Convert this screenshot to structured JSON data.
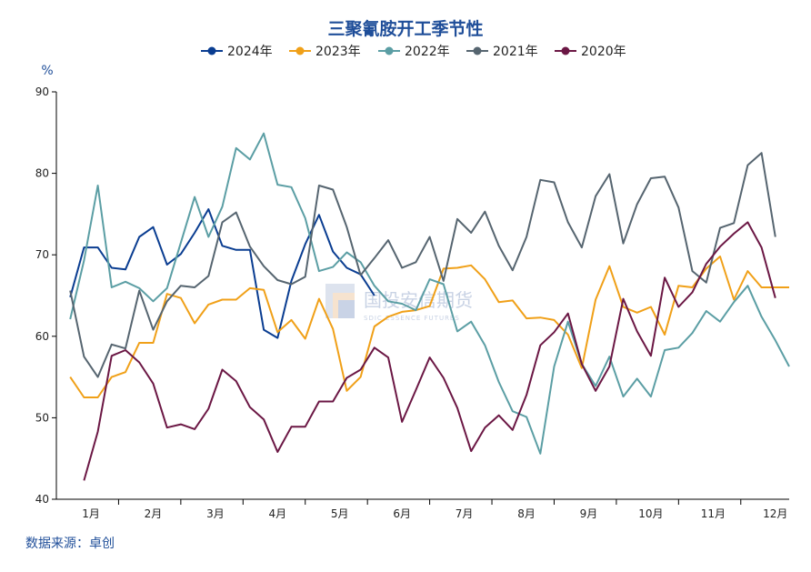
{
  "source_label": "数据来源：卓创",
  "watermark": {
    "main": "国投安信期货",
    "sub": "SDIC ESSENCE FUTURES"
  },
  "colors": {
    "2024年": "#0a3d91",
    "2023年": "#f0a018",
    "2022年": "#5b9ea4",
    "2021年": "#566570",
    "2020年": "#6b1744"
  },
  "chart_data": {
    "type": "line",
    "title": "三聚氰胺开工季节性",
    "ylabel": "%",
    "xlabel": "",
    "ylim": [
      40,
      90
    ],
    "yticks": [
      40,
      50,
      60,
      70,
      80,
      90
    ],
    "xlim": [
      0,
      53
    ],
    "x_tick_labels": [
      "1月",
      "2月",
      "3月",
      "4月",
      "5月",
      "6月",
      "7月",
      "8月",
      "9月",
      "10月",
      "11月",
      "12月"
    ],
    "x_tick_positions": [
      2.5,
      7,
      11.5,
      16,
      20.5,
      25,
      29.5,
      34,
      38.5,
      43,
      47.5,
      52
    ],
    "grid": false,
    "legend_position": "top",
    "series": [
      {
        "name": "2024年",
        "x_start": 1,
        "values": [
          64.8,
          70.9,
          70.9,
          68.4,
          68.2,
          72.2,
          73.4,
          68.8,
          70.1,
          72.7,
          75.6,
          71.1,
          70.6,
          70.6,
          60.8,
          59.8,
          66.8,
          71.3,
          74.9,
          70.4,
          68.4,
          67.6,
          65.0
        ]
      },
      {
        "name": "2023年",
        "x_start": 1,
        "values": [
          55.0,
          52.5,
          52.5,
          55.0,
          55.6,
          59.2,
          59.2,
          65.2,
          64.7,
          61.6,
          63.9,
          64.5,
          64.5,
          65.9,
          65.7,
          60.5,
          62.0,
          59.7,
          64.6,
          60.9,
          53.3,
          55.0,
          61.2,
          62.4,
          63.0,
          63.2,
          63.7,
          68.3,
          68.4,
          68.7,
          67.0,
          64.2,
          64.4,
          62.2,
          62.3,
          62.0,
          60.2,
          56.1,
          64.5,
          68.6,
          63.6,
          62.9,
          63.6,
          60.2,
          66.2,
          66.0,
          68.3,
          69.8,
          64.5,
          68.0,
          66.0,
          66.0,
          66.0
        ]
      },
      {
        "name": "2022年",
        "x_start": 1,
        "values": [
          62.1,
          69.3,
          78.5,
          66.0,
          66.7,
          65.9,
          64.3,
          65.9,
          71.5,
          77.1,
          72.2,
          75.9,
          83.1,
          81.7,
          84.9,
          78.6,
          78.3,
          74.5,
          68.0,
          68.5,
          70.3,
          69.1,
          66.2,
          64.3,
          64.0,
          63.2,
          67.0,
          66.4,
          60.6,
          61.8,
          58.9,
          54.4,
          50.8,
          50.1,
          45.6,
          56.3,
          61.8,
          56.6,
          53.9,
          57.5,
          52.6,
          54.8,
          52.6,
          58.3,
          58.6,
          60.4,
          63.1,
          61.8,
          64.2,
          66.2,
          62.4,
          59.5,
          56.3
        ]
      },
      {
        "name": "2021年",
        "x_start": 1,
        "values": [
          65.6,
          57.5,
          55.0,
          59.0,
          58.5,
          65.6,
          60.8,
          64.3,
          66.2,
          66.0,
          67.4,
          74.0,
          75.2,
          71.0,
          68.6,
          66.9,
          66.4,
          67.3,
          78.5,
          78.0,
          73.4,
          67.5,
          69.6,
          71.8,
          68.4,
          69.1,
          72.2,
          66.8,
          74.4,
          72.7,
          75.3,
          71.1,
          68.1,
          72.2,
          79.2,
          78.9,
          74.0,
          70.9,
          77.2,
          79.9,
          71.4,
          76.2,
          79.4,
          79.6,
          75.8,
          68.0,
          66.6,
          73.3,
          73.9,
          81.0,
          82.5,
          72.2
        ]
      },
      {
        "name": "2020年",
        "x_start": 2,
        "values": [
          42.3,
          48.3,
          57.6,
          58.3,
          56.8,
          54.2,
          48.8,
          49.2,
          48.6,
          51.1,
          55.9,
          54.5,
          51.3,
          49.8,
          45.8,
          48.9,
          48.9,
          52.0,
          52.0,
          54.9,
          55.9,
          58.6,
          57.4,
          49.5,
          53.4,
          57.4,
          54.9,
          51.2,
          45.9,
          48.8,
          50.3,
          48.5,
          52.8,
          58.9,
          60.5,
          62.8,
          56.6,
          53.3,
          56.3,
          64.6,
          60.6,
          57.6,
          67.2,
          63.6,
          65.4,
          68.9,
          71.0,
          72.6,
          74.0,
          70.9,
          64.7
        ]
      }
    ]
  }
}
